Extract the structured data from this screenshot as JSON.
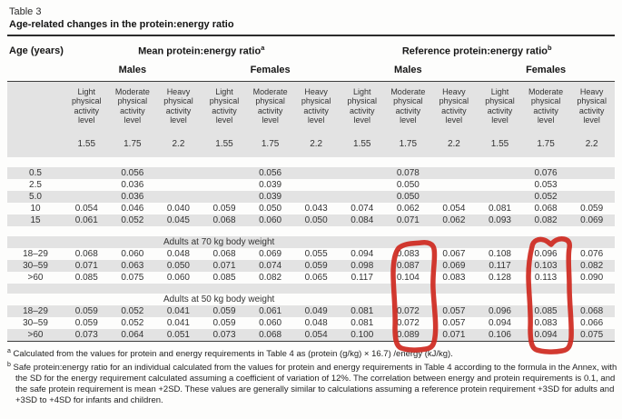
{
  "page": {
    "table_label": "Table 3",
    "title": "Age-related changes in the protein:energy ratio"
  },
  "header": {
    "age": "Age (years)",
    "groups": [
      {
        "label": "Mean protein:energy ratio",
        "marker": "a"
      },
      {
        "label": "Reference protein:energy ratio",
        "marker": "b"
      }
    ],
    "sexes": [
      "Males",
      "Females",
      "Males",
      "Females"
    ],
    "activity_levels": [
      "Light physical activity level",
      "Moderate physical activity level",
      "Heavy physical activity level"
    ],
    "pal_values": [
      "1.55",
      "1.75",
      "2.2"
    ]
  },
  "rows": [
    {
      "type": "spacer",
      "shade": false
    },
    {
      "type": "data",
      "shade": true,
      "age": "0.5",
      "values": [
        "",
        "0.056",
        "",
        "",
        "0.056",
        "",
        "",
        "0.078",
        "",
        "",
        "0.076",
        ""
      ]
    },
    {
      "type": "data",
      "shade": false,
      "age": "2.5",
      "values": [
        "",
        "0.036",
        "",
        "",
        "0.039",
        "",
        "",
        "0.050",
        "",
        "",
        "0.053",
        ""
      ]
    },
    {
      "type": "data",
      "shade": true,
      "age": "5.0",
      "values": [
        "",
        "0.036",
        "",
        "",
        "0.039",
        "",
        "",
        "0.050",
        "",
        "",
        "0.052",
        ""
      ]
    },
    {
      "type": "data",
      "shade": false,
      "age": "10",
      "values": [
        "0.054",
        "0.046",
        "0.040",
        "0.059",
        "0.050",
        "0.043",
        "0.074",
        "0.062",
        "0.054",
        "0.081",
        "0.068",
        "0.059"
      ]
    },
    {
      "type": "data",
      "shade": true,
      "age": "15",
      "values": [
        "0.061",
        "0.052",
        "0.045",
        "0.068",
        "0.060",
        "0.050",
        "0.084",
        "0.071",
        "0.062",
        "0.093",
        "0.082",
        "0.069"
      ]
    },
    {
      "type": "spacer",
      "shade": false
    },
    {
      "type": "section",
      "shade": true,
      "label": "Adults at 70 kg body weight"
    },
    {
      "type": "data",
      "shade": false,
      "age": "18–29",
      "values": [
        "0.068",
        "0.060",
        "0.048",
        "0.068",
        "0.069",
        "0.055",
        "0.094",
        "0.083",
        "0.067",
        "0.108",
        "0.096",
        "0.076"
      ]
    },
    {
      "type": "data",
      "shade": true,
      "age": "30–59",
      "values": [
        "0.071",
        "0.063",
        "0.050",
        "0.071",
        "0.074",
        "0.059",
        "0.098",
        "0.087",
        "0.069",
        "0.117",
        "0.103",
        "0.082"
      ]
    },
    {
      "type": "data",
      "shade": false,
      "age": ">60",
      "values": [
        "0.085",
        "0.075",
        "0.060",
        "0.085",
        "0.082",
        "0.065",
        "0.117",
        "0.104",
        "0.083",
        "0.128",
        "0.113",
        "0.090"
      ]
    },
    {
      "type": "spacer",
      "shade": true
    },
    {
      "type": "section",
      "shade": false,
      "label": "Adults at 50 kg body weight"
    },
    {
      "type": "data",
      "shade": true,
      "age": "18–29",
      "values": [
        "0.059",
        "0.052",
        "0.041",
        "0.059",
        "0.061",
        "0.049",
        "0.081",
        "0.072",
        "0.057",
        "0.096",
        "0.085",
        "0.068"
      ]
    },
    {
      "type": "data",
      "shade": false,
      "age": "30–59",
      "values": [
        "0.059",
        "0.052",
        "0.041",
        "0.059",
        "0.060",
        "0.048",
        "0.081",
        "0.072",
        "0.057",
        "0.094",
        "0.083",
        "0.066"
      ]
    },
    {
      "type": "data",
      "shade": true,
      "age": ">60",
      "values": [
        "0.073",
        "0.064",
        "0.051",
        "0.073",
        "0.068",
        "0.054",
        "0.100",
        "0.089",
        "0.071",
        "0.106",
        "0.094",
        "0.075"
      ]
    }
  ],
  "footnotes": [
    {
      "marker": "a",
      "text": "Calculated from the values for protein and energy requirements in Table 4 as (protein (g/kg) × 16.7) /energy (kJ/kg)."
    },
    {
      "marker": "b",
      "text": "Safe protein:energy ratio for an individual calculated from the values for protein and energy requirements in Table 4 according to the formula in the Annex, with the SD for the energy requirement calculated assuming a coefficient of variation of 12%. The correlation between energy and protein requirements is 0.1, and the safe protein requirement is mean +2SD. These values are generally similar to calculations assuming a reference protein requirement +3SD for adults and +3SD to +4SD for infants and children."
    }
  ],
  "annotations": {
    "marker_color": "#cf2a20",
    "circled_columns": [
      "Reference protein:energy ratio – Males – Moderate",
      "Reference protein:energy ratio – Females – Moderate"
    ]
  },
  "colors": {
    "shade": "#e3e3e3",
    "rule": "#3d3d3d"
  }
}
